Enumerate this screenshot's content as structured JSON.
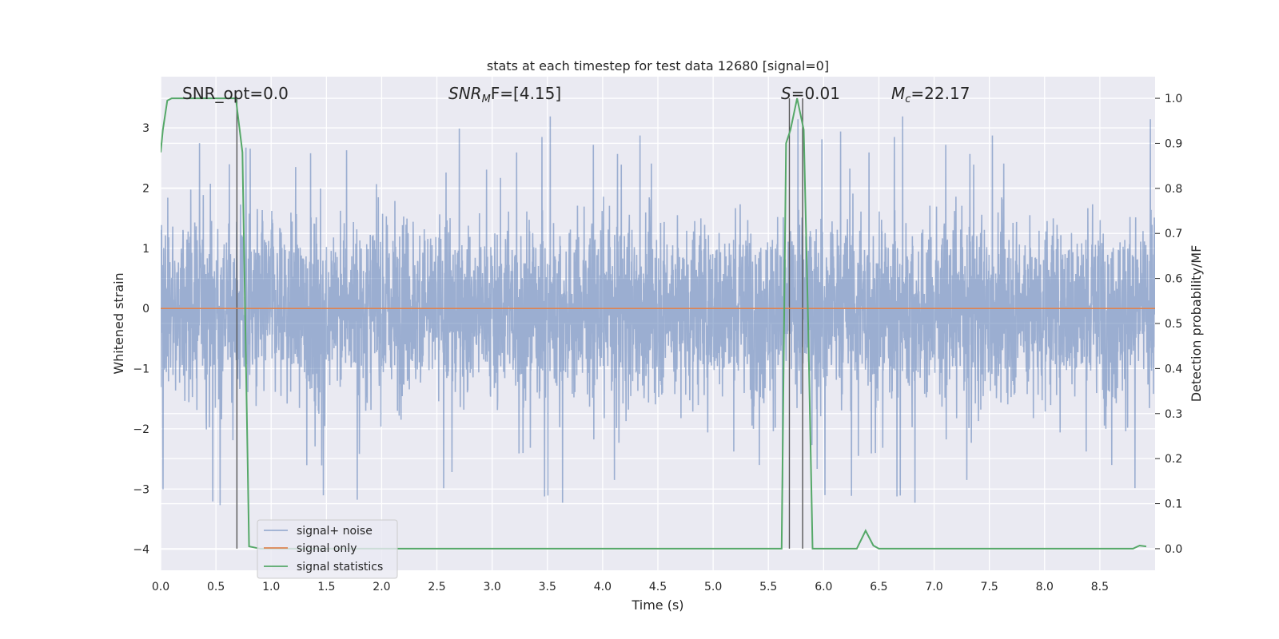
{
  "chart_data": {
    "type": "line",
    "title": "stats at each timestep for test data 12680 [signal=0]",
    "xlabel": "Time (s)",
    "ylabel": "Whitened strain",
    "ylabel_right": "Detection probability/MF",
    "xlim": [
      0,
      9
    ],
    "ylim": [
      -4.35,
      3.85
    ],
    "ylim_right": [
      -0.048,
      1.048
    ],
    "xticks": [
      0.0,
      0.5,
      1.0,
      1.5,
      2.0,
      2.5,
      3.0,
      3.5,
      4.0,
      4.5,
      5.0,
      5.5,
      6.0,
      6.5,
      7.0,
      7.5,
      8.0,
      8.5
    ],
    "yticks": [
      -4,
      -3,
      -2,
      -1,
      0,
      1,
      2,
      3
    ],
    "yticks_right": [
      0.0,
      0.1,
      0.2,
      0.3,
      0.4,
      0.5,
      0.6,
      0.7,
      0.8,
      0.9,
      1.0
    ],
    "grid": true,
    "legend_position": "lower-left",
    "annotations": {
      "snr_opt": "SNR_opt=0.0",
      "snr_mf_main": "SNR",
      "snr_mf_sub": "M",
      "snr_mf_rest": "F=[4.15]",
      "s_main": "S",
      "s_rest": "=0.01",
      "mc_main": "M",
      "mc_sub": "c",
      "mc_rest": "=22.17"
    },
    "vertical_lines_x": [
      0.69,
      5.69,
      5.81
    ],
    "series": [
      {
        "name": "signal+ noise",
        "color": "#4c72b0",
        "alpha": 0.5,
        "axis": "left",
        "noise_band": {
          "core_min": -1.5,
          "core_max": 1.6,
          "typical_peak": 2.6,
          "max_peak": 3.45,
          "min_trough": -3.9
        }
      },
      {
        "name": "signal only",
        "color": "#dd8452",
        "axis": "left",
        "x": [
          0,
          9
        ],
        "y": [
          0,
          0
        ]
      },
      {
        "name": "signal statistics",
        "color": "#55a868",
        "axis": "right",
        "x": [
          0,
          0.02,
          0.06,
          0.1,
          0.2,
          0.3,
          0.4,
          0.5,
          0.6,
          0.68,
          0.74,
          0.8,
          0.9,
          1.0,
          2.0,
          3.0,
          4.0,
          5.0,
          5.5,
          5.62,
          5.66,
          5.7,
          5.76,
          5.82,
          5.86,
          5.9,
          6.0,
          6.3,
          6.38,
          6.45,
          6.5,
          7.0,
          8.0,
          8.8,
          8.86,
          8.92
        ],
        "y": [
          0.88,
          0.93,
          0.995,
          1.0,
          1.0,
          1.0,
          1.0,
          1.0,
          1.0,
          1.0,
          0.88,
          0.005,
          0.0,
          0.0,
          0.0,
          0.0,
          0.0,
          0.0,
          0.0,
          0.0,
          0.9,
          0.93,
          1.0,
          0.93,
          0.5,
          0.0,
          0.0,
          0.0,
          0.04,
          0.007,
          0.0,
          0.0,
          0.0,
          0.0,
          0.007,
          0.005
        ]
      }
    ]
  }
}
